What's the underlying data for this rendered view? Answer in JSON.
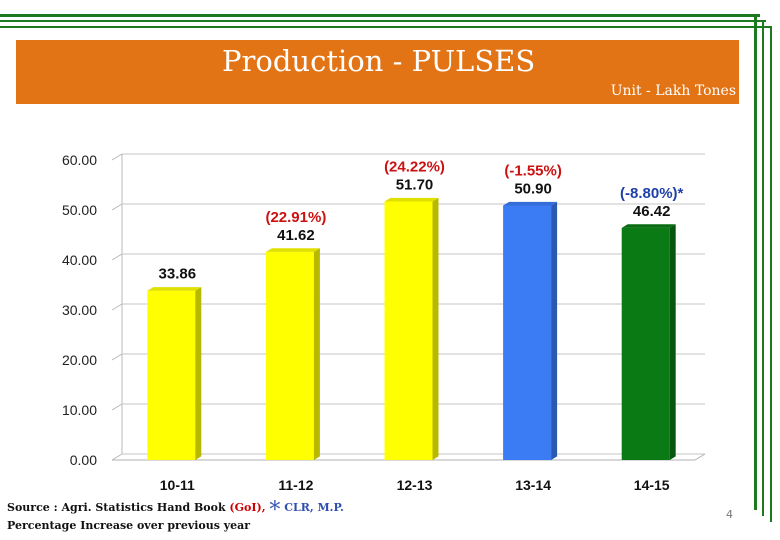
{
  "slide": {
    "title": "Production - PULSES",
    "unit": "Unit - Lakh Tones",
    "source_prefix": "Source : Agri. Statistics Hand Book ",
    "source_goi": "(GoI),",
    "source_star": "*",
    "source_org": "CLR, M.P.",
    "note": "Percentage Increase over previous year",
    "page_number": "4"
  },
  "colors": {
    "title_bar": "#e27416",
    "frame": "#1e7a1e",
    "bar_yellow": "#ffff00",
    "bar_blue": "#3b7cf5",
    "bar_green": "#0a7a14",
    "pct_red": "#cc1111",
    "pct_blue": "#1f3fa8"
  },
  "chart_data": {
    "type": "bar",
    "title": "",
    "xlabel": "",
    "ylabel": "",
    "ylim": [
      0,
      60
    ],
    "yticks": [
      "0.00",
      "10.00",
      "20.00",
      "30.00",
      "40.00",
      "50.00",
      "60.00"
    ],
    "grid": true,
    "categories": [
      "10-11",
      "11-12",
      "12-13",
      "13-14",
      "14-15"
    ],
    "values": [
      33.86,
      41.62,
      51.7,
      50.9,
      46.42
    ],
    "value_labels": [
      "33.86",
      "41.62",
      "51.70",
      "50.90",
      "46.42"
    ],
    "pct_labels": [
      "",
      "(22.91%)",
      "(24.22%)",
      "(-1.55%)",
      "(-8.80%)*"
    ],
    "bar_colors": [
      "#ffff00",
      "#ffff00",
      "#ffff00",
      "#3b7cf5",
      "#0a7a14"
    ],
    "pct_colors": [
      "#cc1111",
      "#cc1111",
      "#cc1111",
      "#cc1111",
      "#1f3fa8"
    ]
  }
}
